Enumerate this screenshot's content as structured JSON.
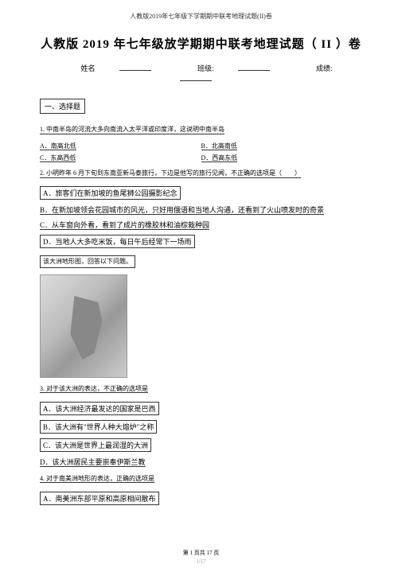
{
  "header": "人教版2019年七年级下学期期中联考地理试题(II)卷",
  "title": "人教版 2019 年七年级放学期期中联考地理试题（ II ）卷",
  "info": {
    "name_label": "姓名",
    "class_label": "班级:",
    "score_label": "成绩:"
  },
  "section1": "一、选择题",
  "q1": {
    "text": "1. 中南半岛的河流大多向南流入太平洋或印度洋，这说明中南半岛",
    "a": "A．南高北低",
    "b": "B．北高南低",
    "c": "C．东高西低",
    "d": "D．西高东低"
  },
  "q2": {
    "text": "2. 小明昨年 6 月下旬到东南亚新马泰旅行，下边是他写的旅行见闻，不正确的选项是（　　）",
    "a": "A．旅客们在新加坡的鱼尾狮公园摄影纪念",
    "b": "B．在新加坡领会花园城市的风光，只好用俄语和当地人沟通，还看到了火山喷发时的奇景",
    "c": "C．从车窗向外看，看到了成片的橡胶林和油棕栽种园",
    "d": "D．当地人大多吃米饭，每日午后经常下一场雨"
  },
  "continent_intro": "该大洲地形图，回答以下问题。",
  "q3": {
    "text": "3. 对于该大洲的表达，不正确的选项是",
    "a": "A．该大洲经济最发达的国家是巴西",
    "b": "B．该大洲有\"世界人种大熔炉\"之称",
    "c": "C．该大洲是世界上最润湿的大洲",
    "d": "D．该大洲居民主要崇奉伊斯兰教"
  },
  "q4": {
    "text": "4. 对于南美洲地形的表达，正确的选项是",
    "a": "A．南美洲东部平原和高原相间散布"
  },
  "footer": "第 1 页共 17 页",
  "pagenum": "1/17"
}
